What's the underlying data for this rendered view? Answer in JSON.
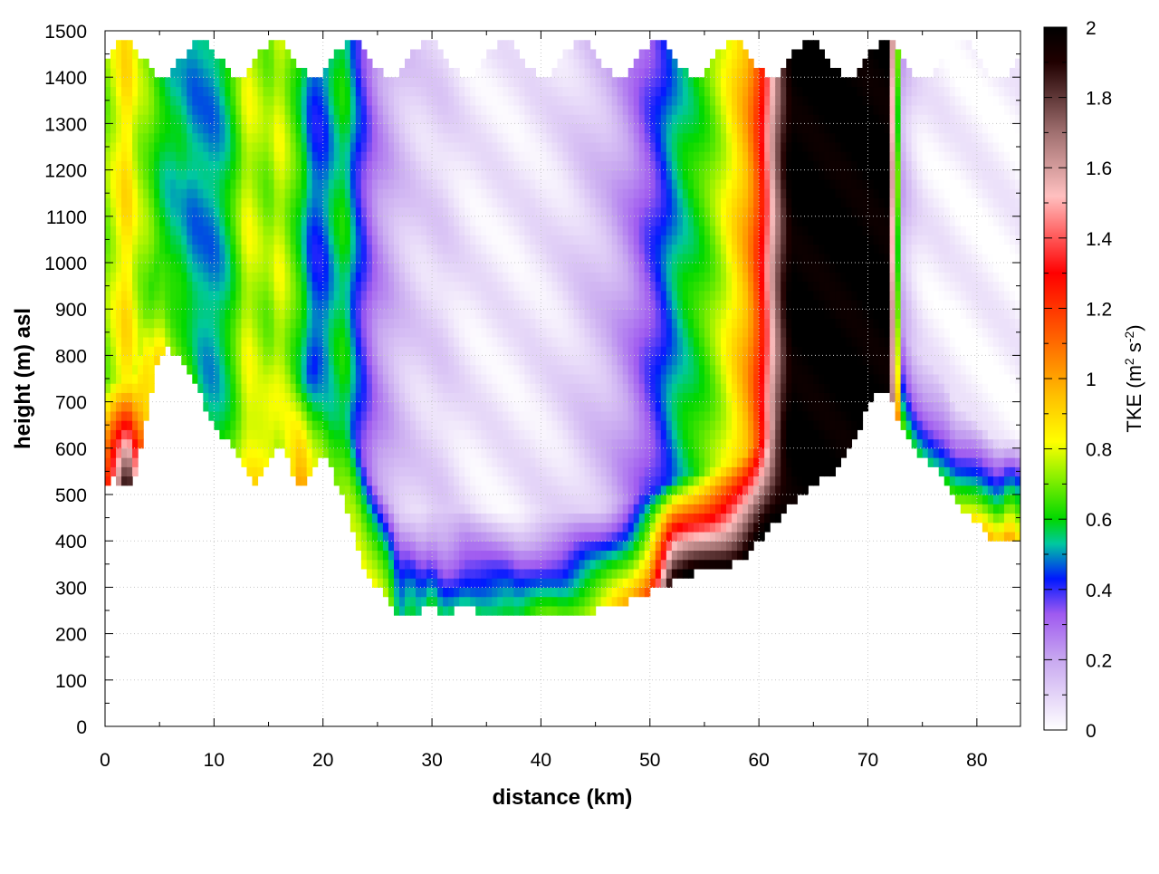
{
  "chart_data": {
    "type": "heatmap",
    "title": "",
    "xlabel": "distance (km)",
    "ylabel": "height (m) asl",
    "xlim": [
      0,
      84
    ],
    "ylim": [
      0,
      1500
    ],
    "x_ticks": [
      0,
      10,
      20,
      30,
      40,
      50,
      60,
      70,
      80
    ],
    "y_ticks": [
      0,
      100,
      200,
      300,
      400,
      500,
      600,
      700,
      800,
      900,
      1000,
      1100,
      1200,
      1300,
      1400,
      1500
    ],
    "grid": true,
    "colorbar": {
      "label_prefix": "TKE (m",
      "label_sup1": "2",
      "label_mid": " s",
      "label_sup2": "-2",
      "label_suffix": ")",
      "range": [
        0,
        2
      ],
      "ticks": [
        "0",
        "0.2",
        "0.4",
        "0.6",
        "0.8",
        "1",
        "1.2",
        "1.4",
        "1.6",
        "1.8",
        "2"
      ],
      "stops": [
        {
          "v": 0.0,
          "color": "#ffffff"
        },
        {
          "v": 0.2,
          "color": "#c8a8f0"
        },
        {
          "v": 0.33,
          "color": "#9f5af0"
        },
        {
          "v": 0.43,
          "color": "#0018ff"
        },
        {
          "v": 0.53,
          "color": "#00c8a0"
        },
        {
          "v": 0.6,
          "color": "#00d800"
        },
        {
          "v": 0.72,
          "color": "#8cf000"
        },
        {
          "v": 0.82,
          "color": "#ffff00"
        },
        {
          "v": 0.95,
          "color": "#ffc000"
        },
        {
          "v": 1.12,
          "color": "#ff6000"
        },
        {
          "v": 1.3,
          "color": "#ff0000"
        },
        {
          "v": 1.52,
          "color": "#ffc0c0"
        },
        {
          "v": 1.7,
          "color": "#a07070"
        },
        {
          "v": 1.9,
          "color": "#200000"
        },
        {
          "v": 2.0,
          "color": "#000000"
        }
      ]
    },
    "terrain_height_m": {
      "x_km": [
        0,
        1,
        2,
        3,
        4,
        5,
        6,
        7,
        8,
        9,
        10,
        11,
        12,
        13,
        14,
        15,
        16,
        17,
        18,
        19,
        20,
        21,
        22,
        23,
        24,
        25,
        26,
        27,
        28,
        29,
        30,
        31,
        32,
        33,
        34,
        35,
        36,
        37,
        38,
        39,
        40,
        41,
        42,
        43,
        44,
        45,
        46,
        47,
        48,
        49,
        50,
        51,
        52,
        53,
        54,
        55,
        56,
        57,
        58,
        59,
        60,
        61,
        62,
        63,
        64,
        65,
        66,
        67,
        68,
        69,
        70,
        71,
        72,
        73,
        74,
        75,
        76,
        77,
        78,
        79,
        80,
        81,
        82,
        83,
        84
      ],
      "height": [
        520,
        535,
        515,
        555,
        700,
        800,
        815,
        790,
        760,
        700,
        640,
        625,
        590,
        540,
        525,
        580,
        620,
        560,
        510,
        550,
        590,
        540,
        480,
        400,
        330,
        300,
        270,
        235,
        245,
        250,
        255,
        248,
        250,
        258,
        250,
        245,
        243,
        242,
        242,
        243,
        245,
        240,
        240,
        245,
        250,
        250,
        255,
        262,
        270,
        280,
        290,
        300,
        312,
        322,
        330,
        335,
        340,
        345,
        355,
        375,
        400,
        425,
        455,
        480,
        500,
        520,
        545,
        550,
        590,
        630,
        690,
        730,
        715,
        650,
        600,
        580,
        560,
        530,
        480,
        460,
        440,
        415,
        395,
        400,
        400
      ]
    },
    "tke_columns_m2s2": {
      "x_km": [
        0,
        1,
        2,
        3,
        4,
        5,
        6,
        7,
        8,
        9,
        10,
        11,
        12,
        13,
        14,
        15,
        16,
        17,
        18,
        19,
        20,
        21,
        22,
        23,
        24,
        25,
        26,
        27,
        28,
        29,
        30,
        31,
        32,
        33,
        34,
        35,
        36,
        37,
        38,
        39,
        40,
        41,
        42,
        43,
        44,
        45,
        46,
        47,
        48,
        49,
        50,
        51,
        52,
        53,
        54,
        55,
        56,
        57,
        58,
        59,
        60,
        61,
        62,
        63,
        64,
        65,
        66,
        67,
        68,
        69,
        70,
        71,
        72,
        73,
        74,
        75,
        76,
        77,
        78,
        79,
        80,
        81,
        82,
        83,
        84
      ],
      "near_surface": [
        1.2,
        1.5,
        2.0,
        1.3,
        0.85,
        0.9,
        0.75,
        0.7,
        0.65,
        0.55,
        0.55,
        0.6,
        0.7,
        0.85,
        0.9,
        0.85,
        0.75,
        0.85,
        1.1,
        0.8,
        0.7,
        0.65,
        0.7,
        0.8,
        0.85,
        0.85,
        0.8,
        0.55,
        0.6,
        0.5,
        0.6,
        0.5,
        0.55,
        0.6,
        0.6,
        0.6,
        0.6,
        0.6,
        0.55,
        0.6,
        0.65,
        0.7,
        0.7,
        0.72,
        0.75,
        0.8,
        0.85,
        0.9,
        0.95,
        1.05,
        1.2,
        1.6,
        2.0,
        2.0,
        2.0,
        2.0,
        2.0,
        2.0,
        2.0,
        2.0,
        2.0,
        2.0,
        2.0,
        2.0,
        2.0,
        2.0,
        2.0,
        2.0,
        2.0,
        2.0,
        2.0,
        2.0,
        2.0,
        0.7,
        0.6,
        0.55,
        0.55,
        0.6,
        0.7,
        0.8,
        0.9,
        0.95,
        0.95,
        1.1,
        0.9
      ],
      "upper_level": [
        0.7,
        0.8,
        0.9,
        0.75,
        0.7,
        0.6,
        0.55,
        0.55,
        0.5,
        0.5,
        0.5,
        0.55,
        0.65,
        0.8,
        0.75,
        0.7,
        0.8,
        0.7,
        0.6,
        0.45,
        0.45,
        0.55,
        0.6,
        0.45,
        0.35,
        0.25,
        0.2,
        0.15,
        0.12,
        0.1,
        0.1,
        0.1,
        0.08,
        0.06,
        0.05,
        0.05,
        0.05,
        0.05,
        0.05,
        0.06,
        0.06,
        0.07,
        0.08,
        0.1,
        0.12,
        0.14,
        0.16,
        0.2,
        0.24,
        0.3,
        0.36,
        0.42,
        0.5,
        0.56,
        0.6,
        0.65,
        0.72,
        0.8,
        0.9,
        1.0,
        1.2,
        1.5,
        1.8,
        2.0,
        2.0,
        2.0,
        2.0,
        2.0,
        2.0,
        2.0,
        2.0,
        2.0,
        2.0,
        0.2,
        0.1,
        0.05,
        0.04,
        0.04,
        0.03,
        0.03,
        0.03,
        0.03,
        0.03,
        0.03,
        0.03
      ]
    }
  }
}
